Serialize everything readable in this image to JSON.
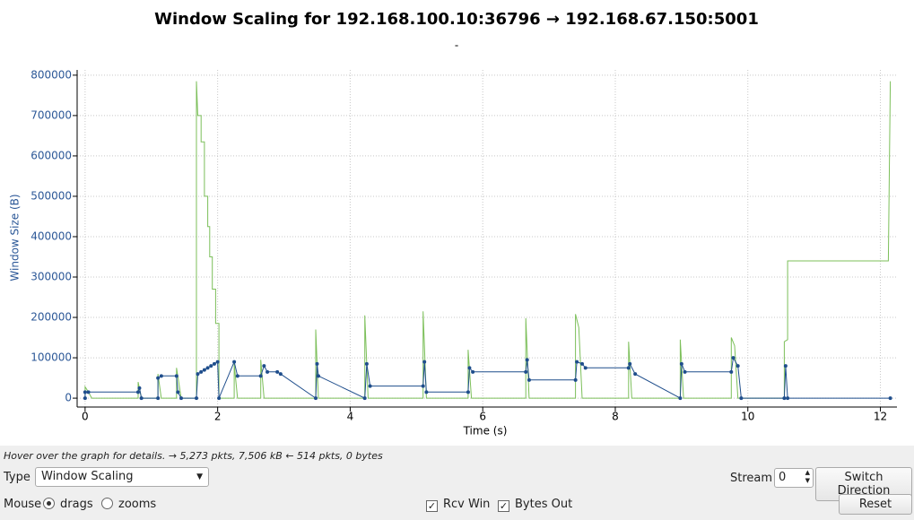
{
  "chart_data": {
    "type": "line",
    "title": "Window Scaling for 192.168.100.10:36796 → 192.168.67.150:5001",
    "subtitle": "-",
    "x_label": "Time (s)",
    "y_label": "Window Size (B)",
    "xlim": [
      -0.12,
      12.25
    ],
    "ylim": [
      -22000,
      813000
    ],
    "xticks": [
      0,
      2,
      4,
      6,
      8,
      10,
      12
    ],
    "yticks": [
      0,
      100000,
      200000,
      300000,
      400000,
      500000,
      600000,
      700000,
      800000
    ],
    "grid": true,
    "series": [
      {
        "name": "Rcv Win",
        "color": "#7cbf5a",
        "markers": false,
        "x": [
          0,
          0,
          0.05,
          0.1,
          0.8,
          0.8,
          0.85,
          1.1,
          1.1,
          1.15,
          1.38,
          1.38,
          1.45,
          1.68,
          1.68,
          1.7,
          1.75,
          1.75,
          1.8,
          1.8,
          1.85,
          1.85,
          1.88,
          1.88,
          1.92,
          1.92,
          1.97,
          1.97,
          2.02,
          2.02,
          2.25,
          2.25,
          2.3,
          2.65,
          2.65,
          2.7,
          3.48,
          3.48,
          3.52,
          4.22,
          4.22,
          4.27,
          5.1,
          5.1,
          5.15,
          5.78,
          5.78,
          5.83,
          6.65,
          6.65,
          6.7,
          7.4,
          7.4,
          7.45,
          7.5,
          8.2,
          8.2,
          8.25,
          8.98,
          8.98,
          9.03,
          9.75,
          9.75,
          9.8,
          9.85,
          10.55,
          10.55,
          10.6,
          10.6,
          12.12,
          12.15
        ],
        "values": [
          0,
          28000,
          15000,
          0,
          0,
          40000,
          0,
          0,
          60000,
          0,
          0,
          75000,
          0,
          0,
          785000,
          700000,
          700000,
          635000,
          635000,
          500000,
          500000,
          425000,
          425000,
          350000,
          350000,
          270000,
          270000,
          185000,
          185000,
          0,
          0,
          85000,
          0,
          0,
          95000,
          0,
          0,
          170000,
          0,
          0,
          205000,
          0,
          0,
          215000,
          0,
          0,
          120000,
          0,
          0,
          198000,
          0,
          0,
          208000,
          175000,
          0,
          0,
          140000,
          0,
          0,
          145000,
          0,
          0,
          150000,
          130000,
          0,
          0,
          140000,
          145000,
          340000,
          340000,
          785000
        ]
      },
      {
        "name": "Bytes Out",
        "color": "#1f4e8c",
        "markers": true,
        "x": [
          0,
          0,
          0.05,
          0.8,
          0.82,
          0.85,
          1.1,
          1.1,
          1.15,
          1.38,
          1.4,
          1.45,
          1.68,
          1.7,
          1.75,
          1.8,
          1.85,
          1.9,
          1.95,
          2.0,
          2.02,
          2.25,
          2.3,
          2.65,
          2.7,
          2.75,
          2.9,
          2.95,
          3.48,
          3.5,
          3.52,
          4.22,
          4.25,
          4.3,
          5.1,
          5.12,
          5.15,
          5.78,
          5.8,
          5.85,
          6.65,
          6.67,
          6.7,
          7.4,
          7.42,
          7.5,
          7.55,
          8.2,
          8.22,
          8.3,
          8.98,
          9.0,
          9.05,
          9.75,
          9.78,
          9.85,
          9.9,
          10.55,
          10.57,
          10.6,
          12.15
        ],
        "values": [
          0,
          15000,
          15000,
          15000,
          25000,
          0,
          0,
          50000,
          55000,
          55000,
          15000,
          0,
          0,
          60000,
          65000,
          70000,
          75000,
          80000,
          85000,
          90000,
          0,
          90000,
          55000,
          55000,
          80000,
          65000,
          65000,
          60000,
          0,
          85000,
          55000,
          0,
          85000,
          30000,
          30000,
          90000,
          15000,
          15000,
          75000,
          65000,
          65000,
          95000,
          45000,
          45000,
          90000,
          85000,
          75000,
          75000,
          85000,
          60000,
          0,
          85000,
          65000,
          65000,
          100000,
          80000,
          0,
          0,
          80000,
          0,
          0
        ]
      }
    ]
  },
  "status": "Hover over the graph for details. → 5,273 pkts, 7,506 kB ← 514 pkts, 0 bytes",
  "controls": {
    "type_label": "Type",
    "type_value": "Window Scaling",
    "stream_label": "Stream",
    "stream_value": "0",
    "switch_direction": "Switch Direction",
    "mouse_label": "Mouse",
    "drags": "drags",
    "zooms": "zooms",
    "reset": "Reset"
  }
}
